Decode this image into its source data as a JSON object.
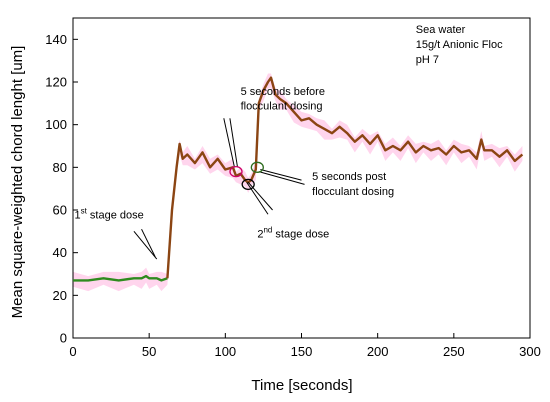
{
  "chart_data": {
    "type": "line",
    "xlabel": "Time [seconds]",
    "ylabel": "Mean square-weighted chord lenght [um]",
    "xlim": [
      0,
      300
    ],
    "ylim": [
      0,
      150
    ],
    "x_ticks": [
      0,
      50,
      100,
      150,
      200,
      250,
      300
    ],
    "y_ticks": [
      0,
      20,
      40,
      60,
      80,
      100,
      120,
      140
    ],
    "grid": false,
    "legend": "none",
    "series_color": "#8b4513",
    "series_color_early": "#2e8b1e",
    "shade_color": "#ff88cc",
    "series": [
      {
        "x": [
          0,
          10,
          20,
          30,
          40,
          45,
          48,
          50,
          55,
          58,
          62,
          65,
          68,
          70,
          72,
          75,
          80,
          85,
          90,
          95,
          100,
          105,
          107,
          110,
          113,
          115,
          117,
          120,
          122,
          125,
          128,
          130,
          133,
          136,
          140,
          145,
          150,
          155,
          160,
          165,
          170,
          175,
          180,
          185,
          190,
          195,
          200,
          205,
          210,
          215,
          220,
          225,
          230,
          235,
          240,
          245,
          250,
          255,
          260,
          265,
          268,
          270,
          275,
          280,
          285,
          290,
          295
        ],
        "y": [
          27,
          27,
          28,
          27,
          28,
          28,
          29,
          28,
          28,
          27,
          28,
          60,
          80,
          91,
          84,
          86,
          82,
          87,
          80,
          84,
          79,
          80,
          76,
          77,
          74,
          73,
          74,
          79,
          110,
          116,
          120,
          122,
          114,
          112,
          110,
          106,
          102,
          103,
          100,
          98,
          96,
          99,
          96,
          92,
          95,
          91,
          95,
          88,
          90,
          88,
          92,
          87,
          90,
          88,
          89,
          86,
          90,
          87,
          88,
          84,
          93,
          88,
          88,
          85,
          88,
          83,
          86
        ]
      }
    ],
    "annotations": [
      {
        "text": "Sea water",
        "x": 225,
        "y": 143
      },
      {
        "text": "15g/t Anionic Floc",
        "x": 225,
        "y": 136
      },
      {
        "text": "pH 7",
        "x": 225,
        "y": 129
      },
      {
        "text": "5 seconds before",
        "x": 110,
        "y": 114
      },
      {
        "text": "flocculant dosing",
        "x": 110,
        "y": 107
      },
      {
        "text": "5 seconds post",
        "x": 157,
        "y": 74
      },
      {
        "text": "flocculant dosing",
        "x": 157,
        "y": 67
      },
      {
        "text": "1",
        "sup": "st",
        "rest": " stage dose",
        "x": 1,
        "y": 56
      },
      {
        "text": "2",
        "sup": "nd",
        "rest": " stage dose",
        "x": 121,
        "y": 47
      }
    ],
    "arrows": [
      {
        "from": [
          40,
          50
        ],
        "to": [
          55,
          37
        ]
      },
      {
        "from": [
          45,
          51
        ],
        "to": [
          54,
          38
        ]
      },
      {
        "from": [
          99,
          103
        ],
        "to": [
          106,
          80
        ]
      },
      {
        "from": [
          103,
          103
        ],
        "to": [
          108,
          80
        ]
      },
      {
        "from": [
          150,
          74
        ],
        "to": [
          123,
          79
        ]
      },
      {
        "from": [
          152,
          72
        ],
        "to": [
          122,
          78
        ]
      },
      {
        "from": [
          131,
          60
        ],
        "to": [
          115,
          73
        ]
      },
      {
        "from": [
          128,
          58
        ],
        "to": [
          114,
          73
        ]
      }
    ],
    "circles": [
      {
        "x": 107,
        "y": 78,
        "color": "#cc0066"
      },
      {
        "x": 121,
        "y": 80,
        "color": "#2e6b1e"
      },
      {
        "x": 115,
        "y": 72,
        "color": "#000000"
      }
    ]
  }
}
